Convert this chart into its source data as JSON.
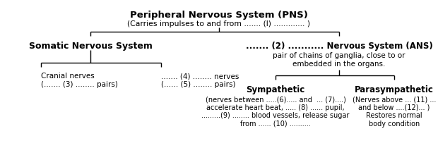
{
  "title": "Peripheral Nervous System (PNS)",
  "subtitle": "(Carries impulses to and from ....... (l) ............. )",
  "left_node": "Somatic Nervous System",
  "right_node": "....... (2) ........... Nervous System (ANS)",
  "right_node_sub": "pair of chains of ganglia, close to or\nembedded in the organs.",
  "ll_node": "Cranial nerves\n(....... (3) ........ pairs)",
  "lr_node": "....... (4) ........ nerves\n(...... (5) ........ pairs)",
  "rl_node": "Sympathetic",
  "rr_node": "Parasympathetic",
  "rl_sub": "(nerves between .....(6)..... and  ... (7)....)\naccelerate heart beat, ..... (8) ...... pupil,\n.........(9) ........ blood vessels, release sugar\nfrom ...... (10) ..........",
  "rr_sub": "(Nerves above ... (11) ...\nand below ....(12)... )\nRestores normal\nbody condition",
  "bg_color": "#ffffff",
  "text_color": "#000000",
  "line_color": "#000000",
  "fig_w": 6.2,
  "fig_h": 2.37,
  "dpi": 100
}
